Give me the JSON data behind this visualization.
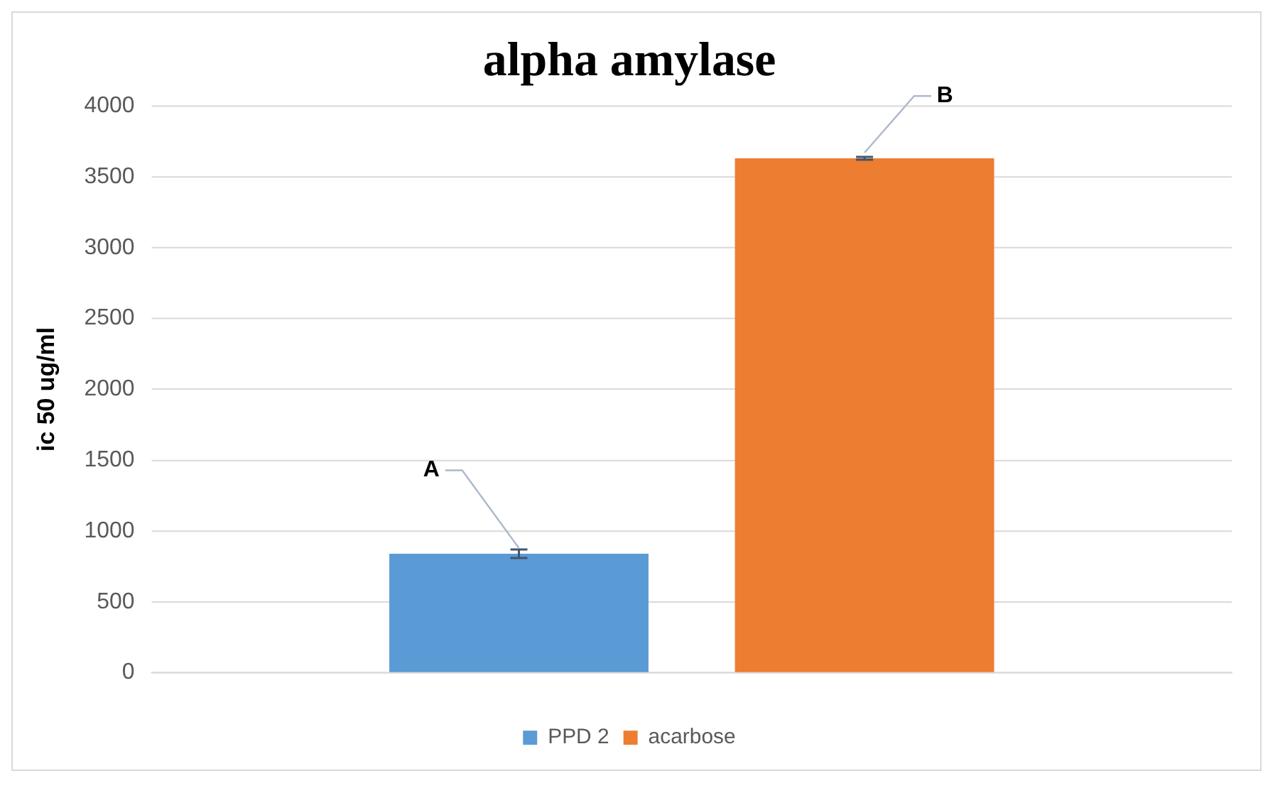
{
  "chart_data": {
    "type": "bar",
    "title": "alpha amylase",
    "ylabel": "ic 50 ug/ml",
    "categories": [
      null
    ],
    "series": [
      {
        "name": "PPD 2",
        "color": "#5b9bd5",
        "values": [
          840
        ],
        "errors": [
          30
        ]
      },
      {
        "name": "acarbose",
        "color": "#ed7d31",
        "values": [
          3630
        ],
        "errors": [
          10
        ]
      }
    ],
    "annotations": [
      "A",
      "B"
    ],
    "ylim": [
      0,
      4000
    ],
    "yticks": [
      0,
      500,
      1000,
      1500,
      2000,
      2500,
      3000,
      3500,
      4000
    ],
    "grid": "y",
    "legend": "bottom"
  }
}
